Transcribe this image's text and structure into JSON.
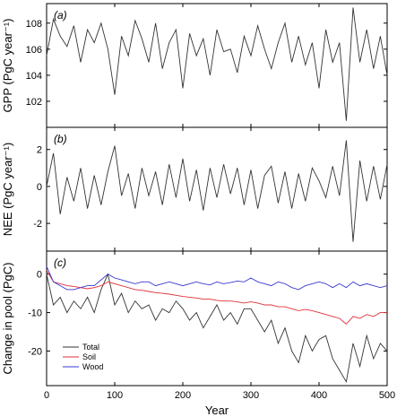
{
  "chart_data": [
    {
      "type": "line",
      "panel_label": "(a)",
      "ylabel": "GPP (PgC year⁻¹)",
      "ylim": [
        100,
        109.5
      ],
      "yticks": [
        102,
        104,
        106,
        108
      ],
      "xlim": [
        0,
        500
      ],
      "series": [
        {
          "color": "#333333",
          "x": [
            0,
            10,
            20,
            30,
            40,
            50,
            60,
            70,
            80,
            90,
            100,
            110,
            120,
            130,
            140,
            150,
            160,
            170,
            180,
            190,
            200,
            210,
            220,
            230,
            240,
            250,
            260,
            270,
            280,
            290,
            300,
            310,
            320,
            330,
            340,
            350,
            360,
            370,
            380,
            390,
            400,
            410,
            420,
            430,
            440,
            450,
            460,
            470,
            480,
            490,
            500
          ],
          "y": [
            105.5,
            108.3,
            107.0,
            106.2,
            107.8,
            105.0,
            107.5,
            106.5,
            108.0,
            106.0,
            102.5,
            107.0,
            105.5,
            108.2,
            106.8,
            105.0,
            108.0,
            104.5,
            106.5,
            107.5,
            103.0,
            107.2,
            105.5,
            106.8,
            104.0,
            107.5,
            105.8,
            106.0,
            104.2,
            107.0,
            105.5,
            107.8,
            106.0,
            104.5,
            106.5,
            108.0,
            105.0,
            107.0,
            104.8,
            106.5,
            103.0,
            107.5,
            105.0,
            106.5,
            100.5,
            109.2,
            105.0,
            107.5,
            104.5,
            107.0,
            104.0
          ]
        }
      ]
    },
    {
      "type": "line",
      "panel_label": "(b)",
      "ylabel": "NEE (PgC year⁻¹)",
      "ylim": [
        -3.5,
        3.2
      ],
      "yticks": [
        -2,
        0,
        2
      ],
      "xlim": [
        0,
        500
      ],
      "series": [
        {
          "color": "#333333",
          "x": [
            0,
            10,
            20,
            30,
            40,
            50,
            60,
            70,
            80,
            90,
            100,
            110,
            120,
            130,
            140,
            150,
            160,
            170,
            180,
            190,
            200,
            210,
            220,
            230,
            240,
            250,
            260,
            270,
            280,
            290,
            300,
            310,
            320,
            330,
            340,
            350,
            360,
            370,
            380,
            390,
            400,
            410,
            420,
            430,
            440,
            450,
            460,
            470,
            480,
            490,
            500
          ],
          "y": [
            0.0,
            1.8,
            -1.5,
            0.5,
            -0.8,
            1.0,
            -1.2,
            0.6,
            -1.0,
            0.8,
            2.2,
            -0.5,
            0.7,
            -1.2,
            1.0,
            -0.5,
            0.8,
            -1.0,
            1.2,
            -0.6,
            1.5,
            -0.8,
            0.9,
            -1.3,
            1.0,
            -0.6,
            1.2,
            -0.4,
            1.0,
            -1.0,
            0.9,
            -1.2,
            0.6,
            1.1,
            -0.9,
            0.8,
            -1.2,
            0.7,
            -0.8,
            1.0,
            0.3,
            -0.6,
            1.1,
            -0.5,
            2.5,
            -3.0,
            1.4,
            -0.8,
            1.1,
            -0.7,
            1.2
          ]
        }
      ]
    },
    {
      "type": "line",
      "panel_label": "(c)",
      "ylabel": "Change in pool (PgC)",
      "xlabel": "Year",
      "ylim": [
        -29,
        6
      ],
      "yticks": [
        -20,
        -10,
        0
      ],
      "xlim": [
        0,
        500
      ],
      "xticks": [
        0,
        100,
        200,
        300,
        400,
        500
      ],
      "legend": {
        "position": "bottom-left"
      },
      "series": [
        {
          "name": "Total",
          "color": "#333333",
          "x": [
            0,
            10,
            20,
            30,
            40,
            50,
            60,
            70,
            80,
            90,
            100,
            110,
            120,
            130,
            140,
            150,
            160,
            170,
            180,
            190,
            200,
            210,
            220,
            230,
            240,
            250,
            260,
            270,
            280,
            290,
            300,
            310,
            320,
            330,
            340,
            350,
            360,
            370,
            380,
            390,
            400,
            410,
            420,
            430,
            440,
            450,
            460,
            470,
            480,
            490,
            500
          ],
          "y": [
            0,
            -8,
            -6,
            -10,
            -7,
            -9,
            -6,
            -10,
            -4,
            0,
            -8,
            -5,
            -10,
            -7,
            -9,
            -8,
            -12,
            -9,
            -10,
            -7,
            -9,
            -12,
            -10,
            -14,
            -11,
            -8,
            -12,
            -10,
            -13,
            -9,
            -9,
            -12,
            -15,
            -12,
            -18,
            -14,
            -20,
            -23,
            -16,
            -20,
            -17,
            -16,
            -22,
            -25,
            -28,
            -18,
            -24,
            -16,
            -22,
            -18,
            -20
          ]
        },
        {
          "name": "Soil",
          "color": "#e0303a",
          "x": [
            0,
            10,
            20,
            30,
            40,
            50,
            60,
            70,
            80,
            90,
            100,
            110,
            120,
            130,
            140,
            150,
            160,
            170,
            180,
            190,
            200,
            210,
            220,
            230,
            240,
            250,
            260,
            270,
            280,
            290,
            300,
            310,
            320,
            330,
            340,
            350,
            360,
            370,
            380,
            390,
            400,
            410,
            420,
            430,
            440,
            450,
            460,
            470,
            480,
            490,
            500
          ],
          "y": [
            1,
            -2,
            -2.5,
            -3,
            -3.2,
            -3.5,
            -3.8,
            -3.5,
            -3,
            -2,
            -2.5,
            -3,
            -3.5,
            -4,
            -4.2,
            -4.5,
            -4.8,
            -5,
            -5.2,
            -5.5,
            -5.8,
            -6,
            -6.2,
            -6.5,
            -6.5,
            -6.8,
            -7,
            -7,
            -7.2,
            -7.5,
            -7.2,
            -7.5,
            -8,
            -8,
            -8.5,
            -8.5,
            -9,
            -9.5,
            -9.2,
            -9.5,
            -10,
            -10.5,
            -11,
            -11.5,
            -13,
            -11,
            -11.5,
            -10.5,
            -11,
            -10,
            -10
          ]
        },
        {
          "name": "Wood",
          "color": "#3a3ad0",
          "x": [
            0,
            10,
            20,
            30,
            40,
            50,
            60,
            70,
            80,
            90,
            100,
            110,
            120,
            130,
            140,
            150,
            160,
            170,
            180,
            190,
            200,
            210,
            220,
            230,
            240,
            250,
            260,
            270,
            280,
            290,
            300,
            310,
            320,
            330,
            340,
            350,
            360,
            370,
            380,
            390,
            400,
            410,
            420,
            430,
            440,
            450,
            460,
            470,
            480,
            490,
            500
          ],
          "y": [
            2,
            -2,
            -3,
            -4,
            -4,
            -3.5,
            -3,
            -3,
            -1.5,
            0,
            -1,
            -1.5,
            -2,
            -2.5,
            -2,
            -2,
            -3,
            -2.5,
            -2,
            -2.5,
            -3,
            -2.5,
            -2,
            -2.5,
            -2.8,
            -2,
            -2.5,
            -2.2,
            -1.8,
            -2,
            -1,
            -2,
            -2.5,
            -3,
            -2,
            -2.5,
            -3.5,
            -4,
            -3,
            -2.5,
            -2,
            -2.5,
            -3.5,
            -2.5,
            -3.5,
            -2,
            -3,
            -2.5,
            -3,
            -3.5,
            -3
          ]
        }
      ]
    }
  ]
}
